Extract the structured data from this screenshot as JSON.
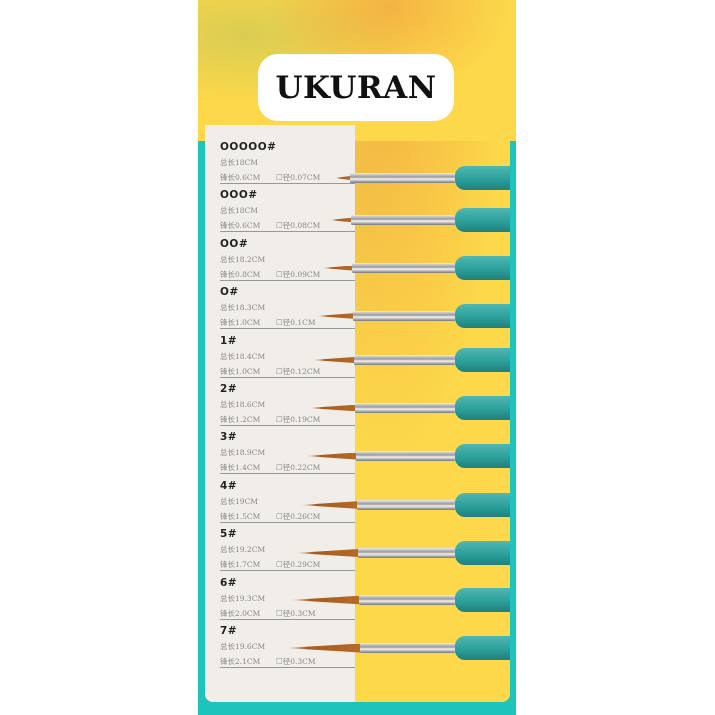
{
  "title": "UKURAN",
  "colors": {
    "teal": "#1cc4bb",
    "yellow": "#fcd84a",
    "card": "#f1ede8"
  },
  "sizes": [
    {
      "name": "OOOOO#",
      "total": "总长18CM",
      "tip": "锋长0.6CM",
      "diam": "☐径0.07CM"
    },
    {
      "name": "OOO#",
      "total": "总长18CM",
      "tip": "锋长0.6CM",
      "diam": "☐径0.08CM"
    },
    {
      "name": "OO#",
      "total": "总长18.2CM",
      "tip": "锋长0.8CM",
      "diam": "☐径0.09CM"
    },
    {
      "name": "O#",
      "total": "总长18.3CM",
      "tip": "锋长1.0CM",
      "diam": "☐径0.1CM"
    },
    {
      "name": "1#",
      "total": "总长18.4CM",
      "tip": "锋长1.0CM",
      "diam": "☐径0.12CM"
    },
    {
      "name": "2#",
      "total": "总长18.6CM",
      "tip": "锋长1.2CM",
      "diam": "☐径0.19CM"
    },
    {
      "name": "3#",
      "total": "总长18.9CM",
      "tip": "锋长1.4CM",
      "diam": "☐径0.22CM"
    },
    {
      "name": "4#",
      "total": "总长19CM",
      "tip": "锋长1.5CM",
      "diam": "☐径0.26CM"
    },
    {
      "name": "5#",
      "total": "总长19.2CM",
      "tip": "锋长1.7CM",
      "diam": "☐径0.29CM"
    },
    {
      "name": "6#",
      "total": "总长19.3CM",
      "tip": "锋长2.0CM",
      "diam": "☐径0.3CM"
    },
    {
      "name": "7#",
      "total": "总长19.6CM",
      "tip": "锋长2.1CM",
      "diam": "☐径0.3CM"
    }
  ]
}
